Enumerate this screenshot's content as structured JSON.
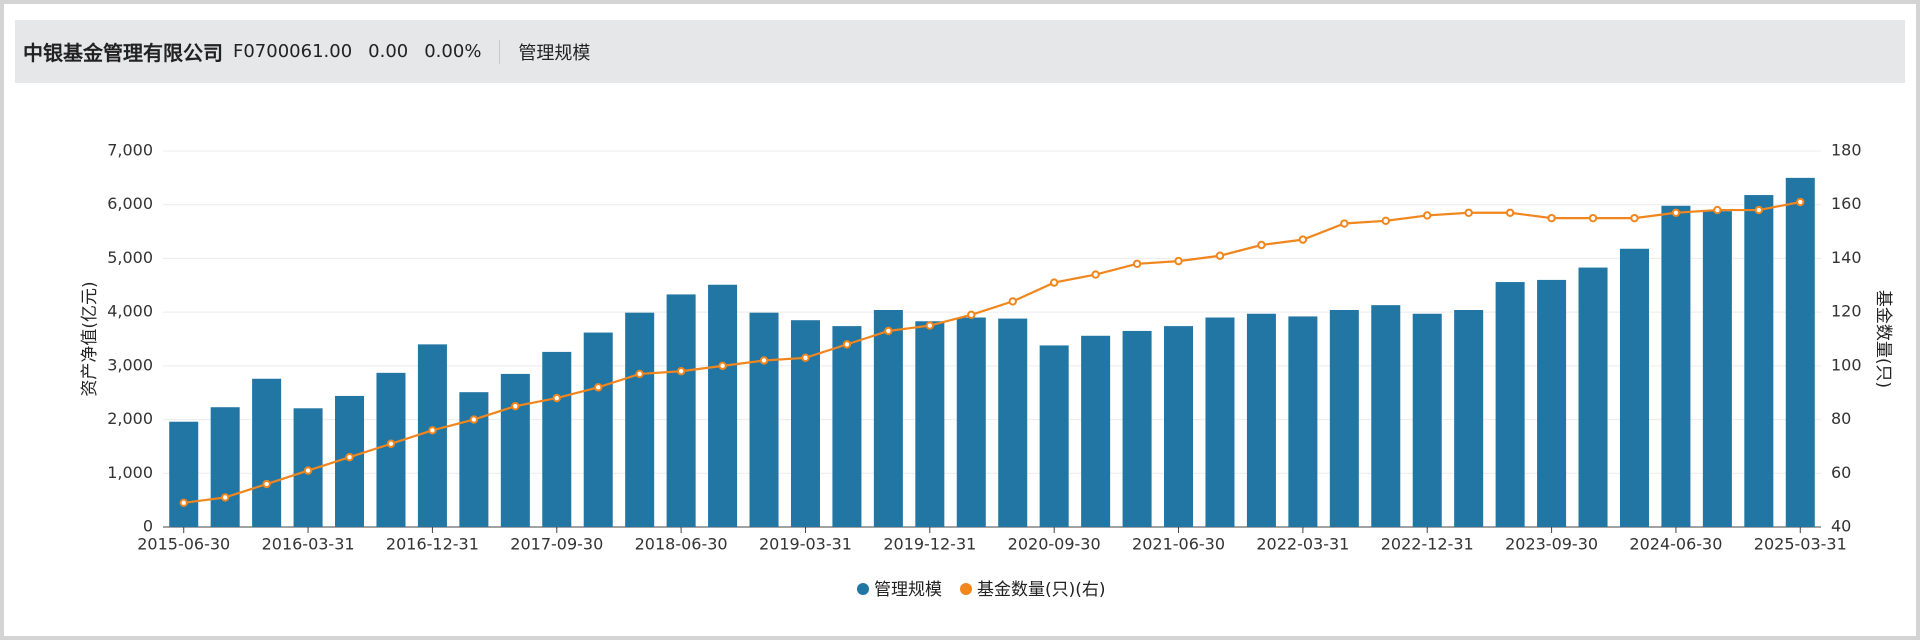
{
  "header": {
    "title": "中银基金管理有限公司",
    "code": "F0700061.00",
    "change": "0.00",
    "change_pct": "0.00%",
    "tab": "管理规模"
  },
  "chart_data": {
    "type": "bar",
    "y_label": "资产净值(亿元)",
    "y2_label": "基金数量(只)",
    "categories": [
      "2015-06-30",
      null,
      null,
      "2016-03-31",
      null,
      null,
      "2016-12-31",
      null,
      null,
      "2017-09-30",
      null,
      null,
      "2018-06-30",
      null,
      null,
      "2019-03-31",
      null,
      null,
      "2019-12-31",
      null,
      null,
      "2020-09-30",
      null,
      null,
      "2021-06-30",
      null,
      null,
      "2022-03-31",
      null,
      null,
      "2022-12-31",
      null,
      null,
      "2023-09-30",
      null,
      null,
      "2024-06-30",
      null,
      null,
      "2025-03-31"
    ],
    "ylim": [
      0,
      7000
    ],
    "yticks": [
      0,
      {
        "value": 1000,
        "label": "1,000"
      },
      {
        "value": 2000,
        "label": "2,000"
      },
      {
        "value": 3000,
        "label": "3,000"
      },
      {
        "value": 4000,
        "label": "4,000"
      },
      {
        "value": 5000,
        "label": "5,000"
      },
      {
        "value": 6000,
        "label": "6,000"
      },
      {
        "value": 7000,
        "label": "7,000"
      }
    ],
    "y2lim": [
      40,
      180
    ],
    "y2ticks": [
      40,
      60,
      80,
      100,
      120,
      140,
      160,
      180
    ],
    "grid": true,
    "series": [
      {
        "name": "管理规模",
        "type": "bar",
        "color": "#2276a4",
        "values": [
          1960,
          2230,
          2760,
          2210,
          2440,
          2870,
          3400,
          2510,
          2850,
          3260,
          3620,
          3990,
          4330,
          4510,
          3990,
          3850,
          3740,
          4040,
          3830,
          3900,
          3880,
          3380,
          3560,
          3650,
          3740,
          3900,
          3970,
          3920,
          4040,
          4130,
          3970,
          4040,
          4560,
          4600,
          4830,
          5180,
          5980,
          5880,
          6180,
          6500
        ]
      },
      {
        "name": "基金数量(只)(右)",
        "type": "line",
        "axis": "y2",
        "color": "#f0861d",
        "values": [
          49,
          51,
          56,
          61,
          66,
          71,
          76,
          80,
          85,
          88,
          92,
          97,
          98,
          100,
          102,
          103,
          108,
          113,
          115,
          119,
          124,
          131,
          134,
          138,
          139,
          141,
          145,
          147,
          153,
          154,
          156,
          157,
          157,
          155,
          155,
          155,
          157,
          158,
          158,
          161
        ]
      }
    ]
  }
}
